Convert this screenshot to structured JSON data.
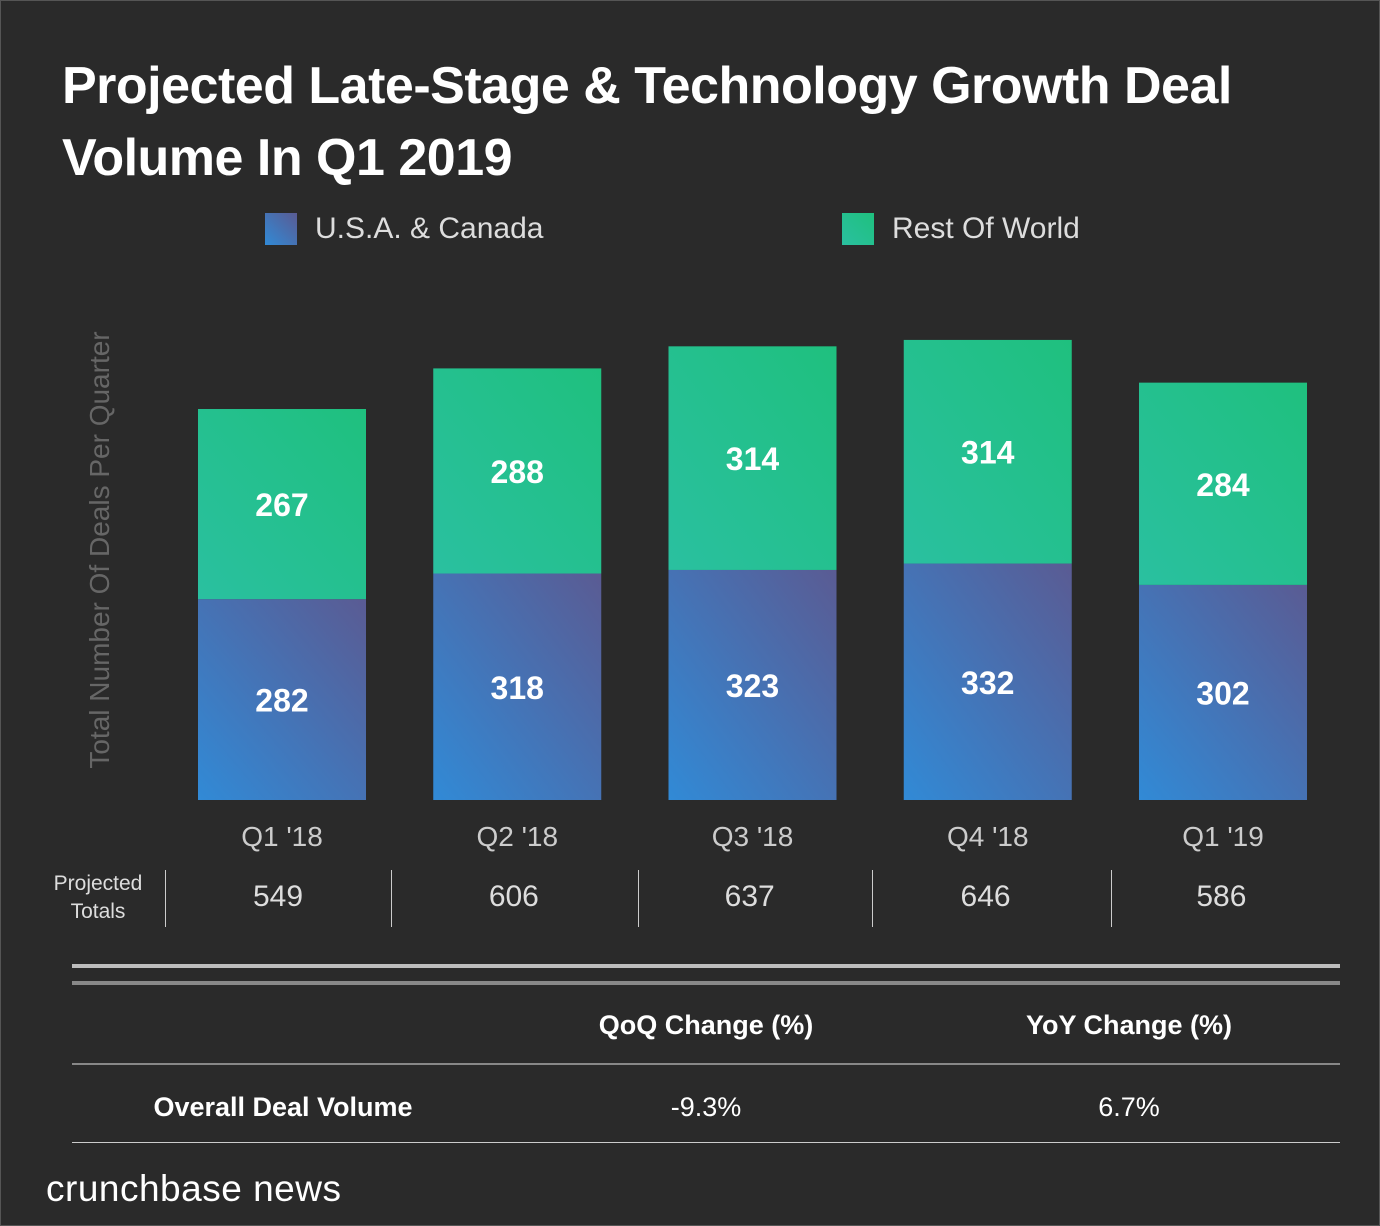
{
  "chart_data": {
    "type": "bar",
    "stacked": true,
    "title": "Projected Late-Stage & Technology Growth Deal Volume In Q1 2019",
    "ylabel": "Total Number Of Deals Per Quarter",
    "xlabel": "",
    "categories": [
      "Q1 '18",
      "Q2 '18",
      "Q3 '18",
      "Q4 '18",
      "Q1 '19"
    ],
    "series": [
      {
        "name": "U.S.A. & Canada",
        "values": [
          282,
          318,
          323,
          332,
          302
        ],
        "color_start": "#318ad6",
        "color_end": "#5a5b93"
      },
      {
        "name": "Rest Of World",
        "values": [
          267,
          288,
          314,
          314,
          284
        ],
        "color_start": "#2ac0a0",
        "color_end": "#1fc07e"
      }
    ],
    "totals_label": [
      "Projected",
      "Totals"
    ],
    "totals": [
      549,
      606,
      637,
      646,
      586
    ],
    "ylim": [
      0,
      700
    ],
    "grid": false,
    "legend": "top"
  },
  "table": {
    "headers": [
      "QoQ Change (%)",
      "YoY Change (%)"
    ],
    "rows": [
      {
        "label": "Overall Deal Volume",
        "qoq": "-9.3%",
        "yoy": "6.7%"
      }
    ]
  },
  "brand": "crunchbase news",
  "colors": {
    "background": "#2a2a2a",
    "text": "#ffffff",
    "muted": "#666666"
  }
}
